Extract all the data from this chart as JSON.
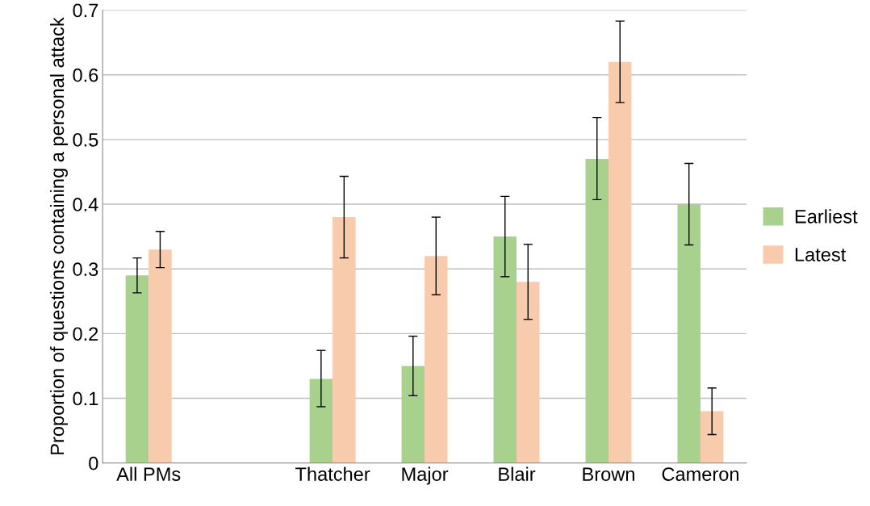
{
  "chart_data": {
    "type": "bar",
    "ylabel": "Proportion of questions containing a personal attack",
    "categories": [
      "All PMs",
      null,
      "Thatcher",
      "Major",
      "Blair",
      "Brown",
      "Cameron"
    ],
    "series": [
      {
        "name": "Earliest",
        "color": "#a9d18e",
        "values": [
          0.29,
          null,
          0.13,
          0.15,
          0.35,
          0.47,
          0.4
        ],
        "errors": [
          [
            0.263,
            0.317
          ],
          null,
          [
            0.087,
            0.174
          ],
          [
            0.104,
            0.196
          ],
          [
            0.288,
            0.412
          ],
          [
            0.407,
            0.534
          ],
          [
            0.337,
            0.463
          ]
        ]
      },
      {
        "name": "Latest",
        "color": "#f8cbad",
        "values": [
          0.33,
          null,
          0.38,
          0.32,
          0.28,
          0.62,
          0.08
        ],
        "errors": [
          [
            0.302,
            0.358
          ],
          null,
          [
            0.317,
            0.443
          ],
          [
            0.26,
            0.38
          ],
          [
            0.222,
            0.338
          ],
          [
            0.557,
            0.683
          ],
          [
            0.044,
            0.116
          ]
        ]
      }
    ],
    "ylim": [
      0,
      0.7
    ],
    "yticks": [
      0,
      0.1,
      0.2,
      0.3,
      0.4,
      0.5,
      0.6,
      0.7
    ],
    "grid": "y",
    "legend": "right"
  }
}
